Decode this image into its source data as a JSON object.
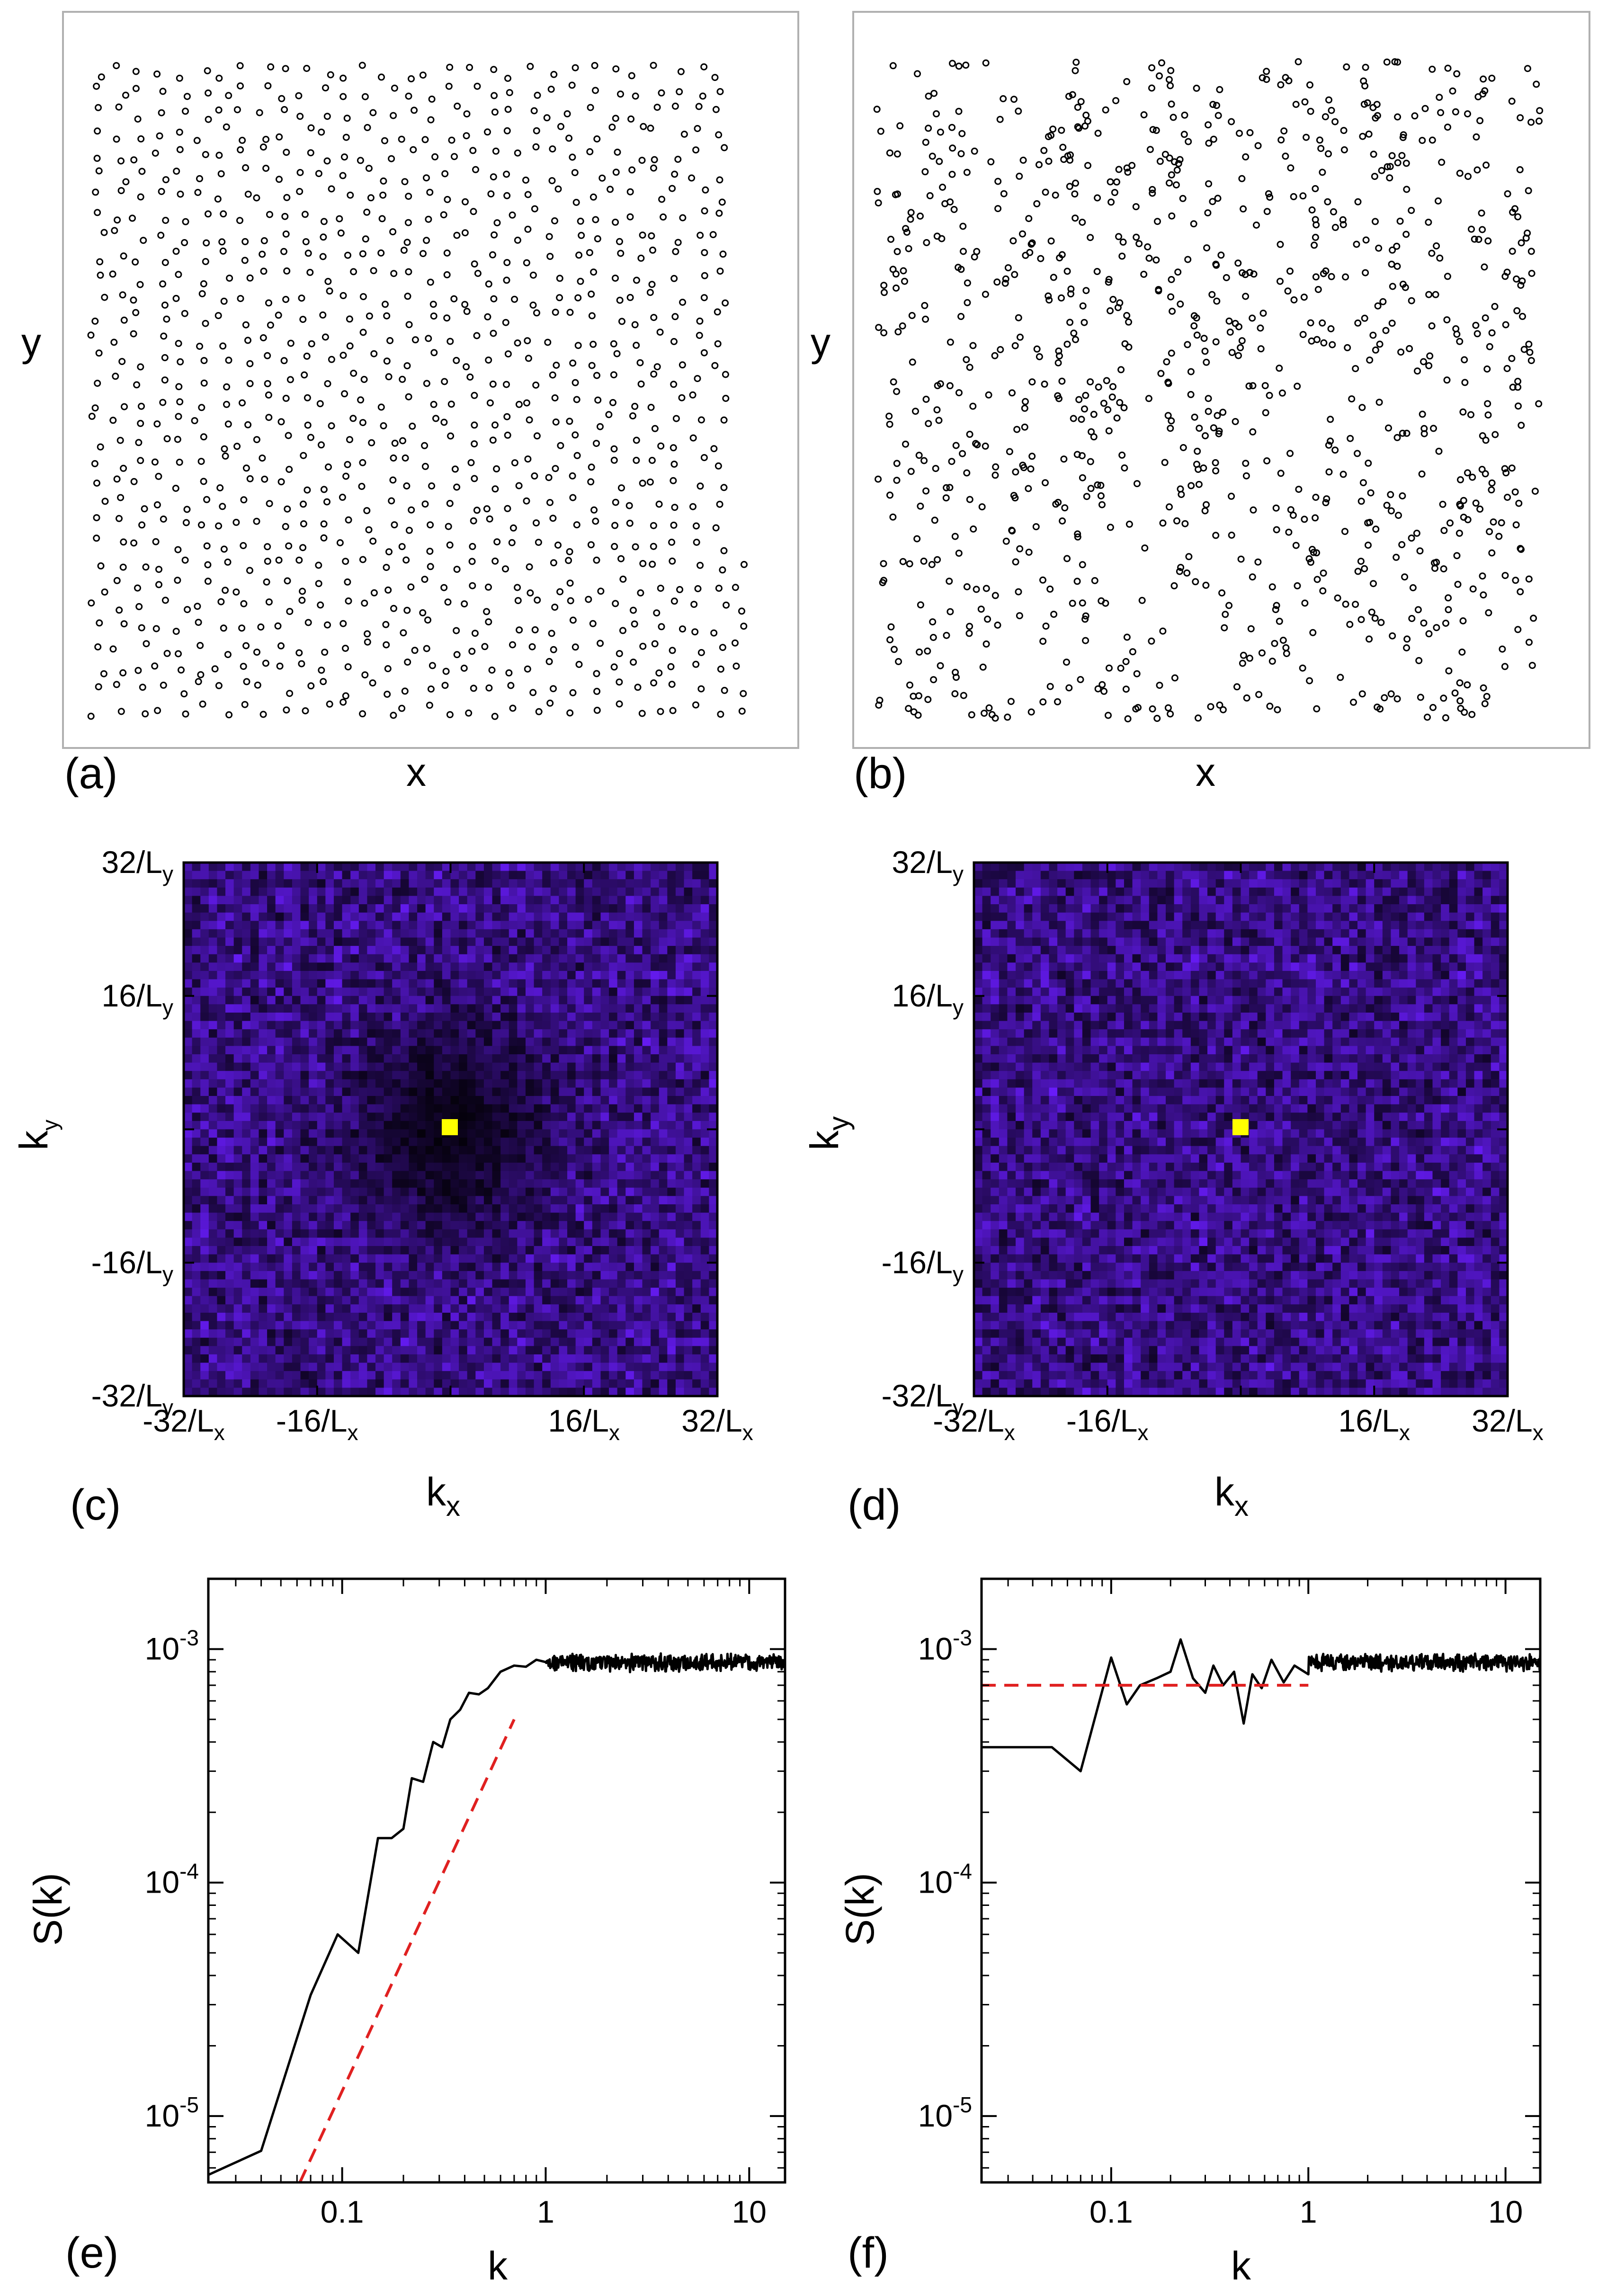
{
  "figure": {
    "panel_labels": [
      "(a)",
      "(b)",
      "(c)",
      "(d)",
      "(e)",
      "(f)"
    ]
  },
  "chart_data": [
    {
      "id": "a",
      "type": "scatter",
      "panel_label": "(a)",
      "description_text": null,
      "xlabel": "x",
      "ylabel": "y",
      "ticks": false,
      "marker": "open-circle",
      "n_points": 1000,
      "arrangement": "uniform, hyperuniform-like (no clustering)",
      "xlim": [
        0,
        1
      ],
      "ylim": [
        0,
        1
      ]
    },
    {
      "id": "b",
      "type": "scatter",
      "panel_label": "(b)",
      "xlabel": "x",
      "ylabel": "y",
      "ticks": false,
      "marker": "open-circle",
      "n_points": 1000,
      "arrangement": "Poisson random (clustered with voids)",
      "xlim": [
        0,
        1
      ],
      "ylim": [
        0,
        1
      ]
    },
    {
      "id": "c",
      "type": "heatmap",
      "panel_label": "(c)",
      "xlabel": "k",
      "xlabel_sub": "x",
      "ylabel": "k",
      "ylabel_sub": "y",
      "grid_cells": 64,
      "xticks": [
        {
          "value": -32,
          "num": "-32/L",
          "sub": "x"
        },
        {
          "value": -16,
          "num": "-16/L",
          "sub": "x"
        },
        {
          "value": 16,
          "num": "16/L",
          "sub": "x"
        },
        {
          "value": 32,
          "num": "32/L",
          "sub": "x"
        }
      ],
      "yticks": [
        {
          "value": 32,
          "num": "32/L",
          "sub": "y"
        },
        {
          "value": 16,
          "num": "16/L",
          "sub": "y"
        },
        {
          "value": -16,
          "num": "-16/L",
          "sub": "y"
        },
        {
          "value": -32,
          "num": "-32/L",
          "sub": "y"
        }
      ],
      "xlim": [
        -32,
        32
      ],
      "ylim": [
        -32,
        32
      ],
      "center_peak_color": "#ffff00",
      "low_color": "#000000",
      "high_color": "#6a1cff",
      "pattern": "suppressed (dark) region around origin"
    },
    {
      "id": "d",
      "type": "heatmap",
      "panel_label": "(d)",
      "xlabel": "k",
      "xlabel_sub": "x",
      "ylabel": "k",
      "ylabel_sub": "y",
      "grid_cells": 64,
      "xticks": [
        {
          "value": -32,
          "num": "-32/L",
          "sub": "x"
        },
        {
          "value": -16,
          "num": "-16/L",
          "sub": "x"
        },
        {
          "value": 16,
          "num": "16/L",
          "sub": "x"
        },
        {
          "value": 32,
          "num": "32/L",
          "sub": "x"
        }
      ],
      "yticks": [
        {
          "value": 32,
          "num": "32/L",
          "sub": "y"
        },
        {
          "value": 16,
          "num": "16/L",
          "sub": "y"
        },
        {
          "value": -16,
          "num": "-16/L",
          "sub": "y"
        },
        {
          "value": -32,
          "num": "-32/L",
          "sub": "y"
        }
      ],
      "xlim": [
        -32,
        32
      ],
      "ylim": [
        -32,
        32
      ],
      "center_peak_color": "#ffff00",
      "low_color": "#000000",
      "high_color": "#6a1cff",
      "pattern": "uniform random speckle, no suppression"
    },
    {
      "id": "e",
      "type": "line",
      "panel_label": "(e)",
      "xlabel": "k",
      "ylabel": "S(k)",
      "xscale": "log",
      "yscale": "log",
      "xlim": [
        0.022,
        15
      ],
      "ylim": [
        5.2e-06,
        0.002
      ],
      "xticks": [
        {
          "value": 0.1,
          "label": "0.1"
        },
        {
          "value": 1,
          "label": "1"
        },
        {
          "value": 10,
          "label": "10"
        }
      ],
      "yticks": [
        {
          "value": 0.001,
          "base": "10",
          "exp": "-3"
        },
        {
          "value": 0.0001,
          "base": "10",
          "exp": "-4"
        },
        {
          "value": 1e-05,
          "base": "10",
          "exp": "-5"
        }
      ],
      "series": [
        {
          "name": "S(k)",
          "color": "#000000",
          "style": "solid",
          "points": [
            [
              0.022,
              5.6e-06
            ],
            [
              0.04,
              7.1e-06
            ],
            [
              0.07,
              3.3e-05
            ],
            [
              0.095,
              6e-05
            ],
            [
              0.12,
              5e-05
            ],
            [
              0.15,
              0.000155
            ],
            [
              0.175,
              0.000155
            ],
            [
              0.2,
              0.00017
            ],
            [
              0.22,
              0.00028
            ],
            [
              0.25,
              0.00027
            ],
            [
              0.28,
              0.0004
            ],
            [
              0.31,
              0.00038
            ],
            [
              0.34,
              0.0005
            ],
            [
              0.38,
              0.00055
            ],
            [
              0.42,
              0.00065
            ],
            [
              0.47,
              0.00064
            ],
            [
              0.52,
              0.00068
            ],
            [
              0.6,
              0.0008
            ],
            [
              0.7,
              0.00085
            ],
            [
              0.8,
              0.00084
            ],
            [
              0.9,
              0.0009
            ],
            [
              1.0,
              0.00088
            ]
          ],
          "plateau": {
            "from": 1.0,
            "to": 15,
            "mean": 0.00088,
            "noise": 0.07
          }
        },
        {
          "name": "power-law guide",
          "color": "#e02020",
          "style": "dashed",
          "points": [
            [
              0.062,
              5.2e-06
            ],
            [
              0.7,
              0.0005
            ]
          ]
        }
      ]
    },
    {
      "id": "f",
      "type": "line",
      "panel_label": "(f)",
      "xlabel": "k",
      "ylabel": "S(k)",
      "xscale": "log",
      "yscale": "log",
      "xlim": [
        0.022,
        15
      ],
      "ylim": [
        5.2e-06,
        0.002
      ],
      "xticks": [
        {
          "value": 0.1,
          "label": "0.1"
        },
        {
          "value": 1,
          "label": "1"
        },
        {
          "value": 10,
          "label": "10"
        }
      ],
      "yticks": [
        {
          "value": 0.001,
          "base": "10",
          "exp": "-3"
        },
        {
          "value": 0.0001,
          "base": "10",
          "exp": "-4"
        },
        {
          "value": 1e-05,
          "base": "10",
          "exp": "-5"
        }
      ],
      "series": [
        {
          "name": "S(k)",
          "color": "#000000",
          "style": "solid",
          "points": [
            [
              0.022,
              0.00038
            ],
            [
              0.05,
              0.00038
            ],
            [
              0.07,
              0.0003
            ],
            [
              0.1,
              0.00092
            ],
            [
              0.12,
              0.00058
            ],
            [
              0.14,
              0.0007
            ],
            [
              0.17,
              0.00075
            ],
            [
              0.2,
              0.0008
            ],
            [
              0.225,
              0.0011
            ],
            [
              0.26,
              0.00075
            ],
            [
              0.3,
              0.00065
            ],
            [
              0.33,
              0.00085
            ],
            [
              0.37,
              0.0007
            ],
            [
              0.42,
              0.0008
            ],
            [
              0.47,
              0.00048
            ],
            [
              0.52,
              0.00078
            ],
            [
              0.58,
              0.00068
            ],
            [
              0.65,
              0.0009
            ],
            [
              0.75,
              0.00072
            ],
            [
              0.85,
              0.00085
            ],
            [
              1.0,
              0.00078
            ]
          ],
          "plateau": {
            "from": 1.0,
            "to": 15,
            "mean": 0.00088,
            "noise": 0.07
          }
        },
        {
          "name": "constant guide",
          "color": "#e02020",
          "style": "dashed",
          "points": [
            [
              0.022,
              0.0007
            ],
            [
              1.0,
              0.0007
            ]
          ]
        }
      ]
    }
  ]
}
